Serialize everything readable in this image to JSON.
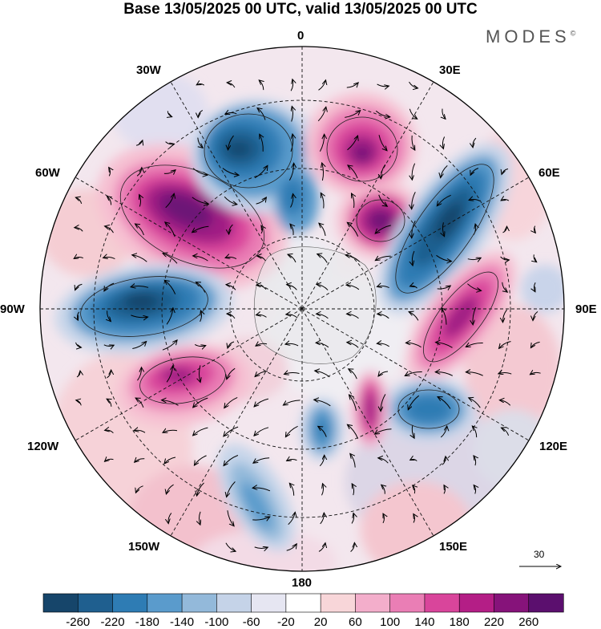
{
  "title": "Base 13/05/2025 00 UTC, valid 13/05/2025 00 UTC",
  "brand": {
    "text": "MODES",
    "mark": "©"
  },
  "longitude_labels": {
    "top": "0",
    "bottom": "180",
    "left": "90W",
    "right": "90E",
    "w30": "30W",
    "e30": "30E",
    "w60": "60W",
    "e60": "60E",
    "w120": "120W",
    "e120": "120E",
    "w150": "150W",
    "e150": "150E"
  },
  "vector_scale": {
    "label": "30"
  },
  "colorbar": {
    "tick_labels": [
      "-260",
      "-220",
      "-180",
      "-140",
      "-100",
      "-60",
      "-20",
      "20",
      "60",
      "100",
      "140",
      "180",
      "220",
      "260"
    ],
    "colors": [
      "#16456a",
      "#1f5f8f",
      "#2e7cb4",
      "#5a9bcc",
      "#93b9da",
      "#c5d3e8",
      "#e6e6f2",
      "#ffffff",
      "#f8d6d9",
      "#f3aecb",
      "#ea7eb5",
      "#d9459b",
      "#b41e86",
      "#86137a",
      "#5b0f6e"
    ]
  },
  "chart_data": {
    "type": "map",
    "projection": "polar stereographic (north pole)",
    "field": "filled anomaly contours with wind vectors",
    "contour_levels": [
      -260,
      -220,
      -180,
      -140,
      -100,
      -60,
      -20,
      20,
      60,
      100,
      140,
      180,
      220,
      260
    ],
    "features": [
      {
        "name": "positive anomaly",
        "lon_label": "60W",
        "sign": "+"
      },
      {
        "name": "negative anomaly",
        "lon_label": "90W",
        "sign": "-"
      },
      {
        "name": "negative anomaly",
        "lon_label": "30W",
        "sign": "-"
      },
      {
        "name": "positive anomaly",
        "lon_label": "30E",
        "sign": "+"
      },
      {
        "name": "negative anomaly",
        "lon_label": "60E",
        "sign": "-"
      },
      {
        "name": "positive anomaly",
        "lon_label": "90E",
        "sign": "+"
      },
      {
        "name": "negative anomaly",
        "lon_label": "120E",
        "sign": "-"
      },
      {
        "name": "positive anomaly",
        "lon_label": "120W",
        "sign": "+"
      }
    ]
  }
}
